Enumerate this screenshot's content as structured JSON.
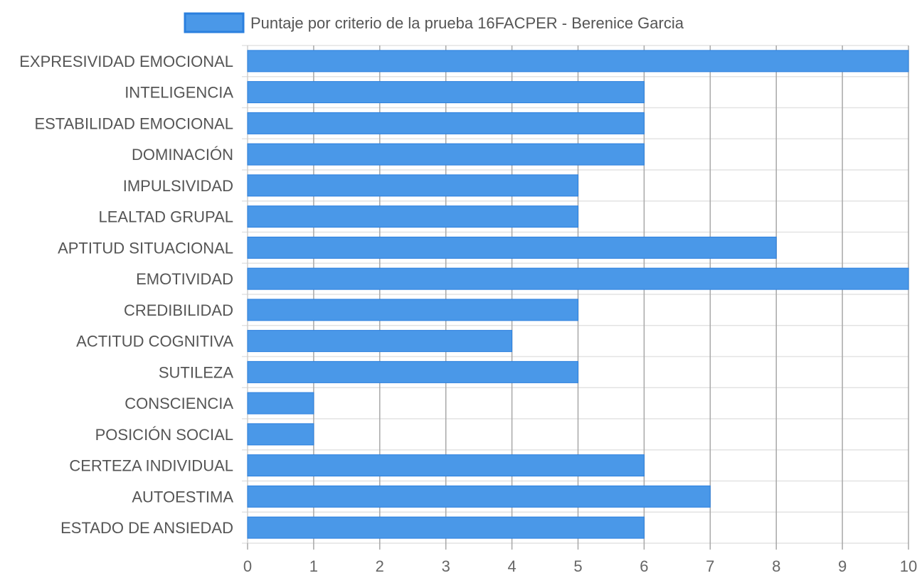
{
  "chart_data": {
    "type": "bar",
    "orientation": "horizontal",
    "legend_position": "top",
    "grid": true,
    "series": [
      {
        "name": "Puntaje por criterio de la prueba 16FACPER - Berenice Garcia",
        "color": "#4a98e8",
        "border_color": "#2a7fde",
        "values": [
          10,
          6,
          6,
          6,
          5,
          5,
          8,
          10,
          5,
          4,
          5,
          1,
          1,
          6,
          7,
          6
        ]
      }
    ],
    "categories": [
      "EXPRESIVIDAD EMOCIONAL",
      "INTELIGENCIA",
      "ESTABILIDAD EMOCIONAL",
      "DOMINACIÓN",
      "IMPULSIVIDAD",
      "LEALTAD GRUPAL",
      "APTITUD SITUACIONAL",
      "EMOTIVIDAD",
      "CREDIBILIDAD",
      "ACTITUD COGNITIVA",
      "SUTILEZA",
      "CONSCIENCIA",
      "POSICIÓN SOCIAL",
      "CERTEZA INDIVIDUAL",
      "AUTOESTIMA",
      "ESTADO DE ANSIEDAD"
    ],
    "xlim": [
      0,
      10
    ],
    "x_ticks": [
      "0",
      "1",
      "2",
      "3",
      "4",
      "5",
      "6",
      "7",
      "8",
      "9",
      "10"
    ]
  }
}
